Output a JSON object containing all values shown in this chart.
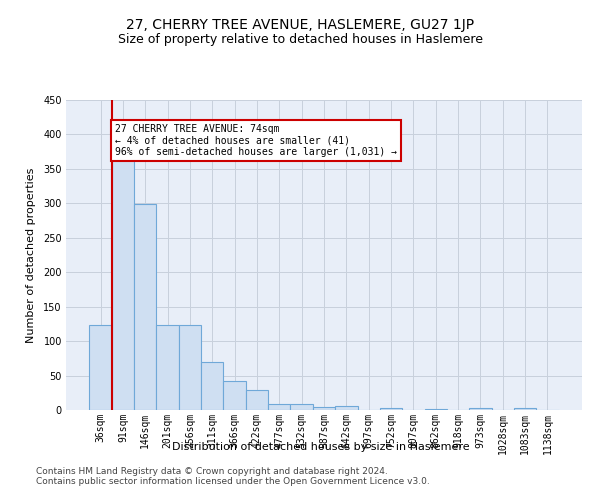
{
  "title": "27, CHERRY TREE AVENUE, HASLEMERE, GU27 1JP",
  "subtitle": "Size of property relative to detached houses in Haslemere",
  "xlabel": "Distribution of detached houses by size in Haslemere",
  "ylabel": "Number of detached properties",
  "categories": [
    "36sqm",
    "91sqm",
    "146sqm",
    "201sqm",
    "256sqm",
    "311sqm",
    "366sqm",
    "422sqm",
    "477sqm",
    "532sqm",
    "587sqm",
    "642sqm",
    "697sqm",
    "752sqm",
    "807sqm",
    "862sqm",
    "918sqm",
    "973sqm",
    "1028sqm",
    "1083sqm",
    "1138sqm"
  ],
  "values": [
    124,
    370,
    299,
    124,
    124,
    70,
    42,
    29,
    8,
    9,
    5,
    6,
    0,
    3,
    0,
    2,
    0,
    3,
    0,
    3,
    0
  ],
  "bar_color": "#cfdff2",
  "bar_edgecolor": "#6fa8d8",
  "vline_x_idx": 0.5,
  "annotation_text": "27 CHERRY TREE AVENUE: 74sqm\n← 4% of detached houses are smaller (41)\n96% of semi-detached houses are larger (1,031) →",
  "annotation_box_facecolor": "#ffffff",
  "annotation_box_edgecolor": "#cc0000",
  "vline_color": "#cc0000",
  "grid_color": "#c8d0dc",
  "background_color": "#e8eef8",
  "footer1": "Contains HM Land Registry data © Crown copyright and database right 2024.",
  "footer2": "Contains public sector information licensed under the Open Government Licence v3.0.",
  "ylim": [
    0,
    450
  ],
  "yticks": [
    0,
    50,
    100,
    150,
    200,
    250,
    300,
    350,
    400,
    450
  ],
  "title_fontsize": 10,
  "subtitle_fontsize": 9,
  "axis_label_fontsize": 8,
  "tick_fontsize": 7,
  "footer_fontsize": 6.5
}
